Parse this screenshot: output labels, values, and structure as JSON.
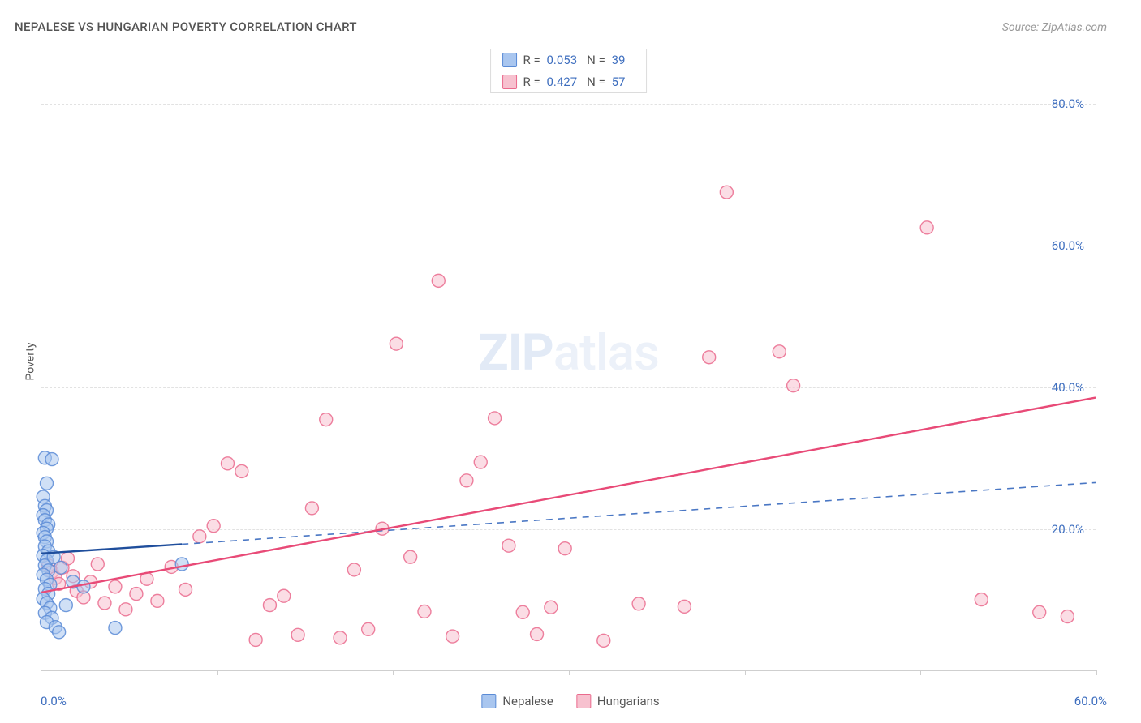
{
  "title": "NEPALESE VS HUNGARIAN POVERTY CORRELATION CHART",
  "source": "Source: ZipAtlas.com",
  "ylabel": "Poverty",
  "watermark_zip": "ZIP",
  "watermark_atlas": "atlas",
  "legend": [
    {
      "r_label": "R =",
      "r": "0.053",
      "n_label": "N =",
      "n": "39",
      "fill": "#a9c6ef",
      "stroke": "#5a8bd6"
    },
    {
      "r_label": "R =",
      "r": "0.427",
      "n_label": "N =",
      "n": "57",
      "fill": "#f7c1cf",
      "stroke": "#ea6a8d"
    }
  ],
  "bottom_legend": [
    {
      "label": "Nepalese",
      "fill": "#a9c6ef",
      "stroke": "#5a8bd6"
    },
    {
      "label": "Hungarians",
      "fill": "#f7c1cf",
      "stroke": "#ea6a8d"
    }
  ],
  "chart": {
    "type": "scatter",
    "xlim": [
      0,
      60
    ],
    "ylim": [
      0,
      88
    ],
    "x_tick_label_start": "0.0%",
    "x_tick_label_end": "60.0%",
    "x_minor_ticks": [
      10,
      20,
      30,
      40,
      50,
      60
    ],
    "y_ticks": [
      20,
      40,
      60,
      80
    ],
    "y_tick_labels": [
      "20.0%",
      "40.0%",
      "60.0%",
      "80.0%"
    ],
    "grid_color": "#e2e2e2",
    "tick_label_color": "#3f6fbf",
    "background_color": "#ffffff",
    "marker_radius": 8,
    "marker_opacity": 0.55,
    "line_width": 2.4,
    "series": {
      "nepalese": {
        "color_fill": "#a9c6ef",
        "color_stroke": "#5a8bd6",
        "trend": {
          "solid_from": [
            0,
            16.5
          ],
          "solid_to": [
            8,
            17.8
          ],
          "dash_to": [
            60,
            26.5
          ]
        },
        "points": [
          [
            0.2,
            30
          ],
          [
            0.6,
            29.8
          ],
          [
            0.3,
            26.4
          ],
          [
            0.1,
            24.5
          ],
          [
            0.2,
            23.2
          ],
          [
            0.3,
            22.6
          ],
          [
            0.1,
            21.9
          ],
          [
            0.2,
            21.2
          ],
          [
            0.4,
            20.6
          ],
          [
            0.3,
            20.0
          ],
          [
            0.1,
            19.4
          ],
          [
            0.2,
            18.8
          ],
          [
            0.3,
            18.2
          ],
          [
            0.2,
            17.5
          ],
          [
            0.4,
            16.8
          ],
          [
            0.1,
            16.2
          ],
          [
            0.3,
            15.5
          ],
          [
            0.2,
            14.8
          ],
          [
            0.4,
            14.1
          ],
          [
            0.1,
            13.5
          ],
          [
            0.3,
            12.8
          ],
          [
            0.5,
            12.1
          ],
          [
            0.2,
            11.5
          ],
          [
            0.4,
            10.8
          ],
          [
            0.1,
            10.1
          ],
          [
            0.3,
            9.5
          ],
          [
            0.5,
            8.8
          ],
          [
            0.2,
            8.1
          ],
          [
            0.6,
            7.4
          ],
          [
            0.3,
            6.8
          ],
          [
            0.8,
            6.1
          ],
          [
            1.0,
            5.4
          ],
          [
            1.4,
            9.2
          ],
          [
            1.8,
            12.5
          ],
          [
            2.4,
            11.8
          ],
          [
            4.2,
            6.0
          ],
          [
            0.7,
            16.0
          ],
          [
            1.1,
            14.5
          ],
          [
            8.0,
            15.0
          ]
        ]
      },
      "hungarians": {
        "color_fill": "#f7c1cf",
        "color_stroke": "#ea6a8d",
        "trend": {
          "solid_from": [
            0,
            11.0
          ],
          "solid_to": [
            60,
            38.5
          ]
        },
        "points": [
          [
            0.4,
            14.8
          ],
          [
            0.6,
            13.9
          ],
          [
            0.8,
            13.0
          ],
          [
            1.0,
            12.2
          ],
          [
            1.2,
            14.5
          ],
          [
            1.5,
            15.8
          ],
          [
            1.8,
            13.3
          ],
          [
            2.0,
            11.2
          ],
          [
            2.4,
            10.3
          ],
          [
            2.8,
            12.5
          ],
          [
            3.2,
            15.0
          ],
          [
            3.6,
            9.5
          ],
          [
            4.2,
            11.8
          ],
          [
            4.8,
            8.6
          ],
          [
            5.4,
            10.8
          ],
          [
            6.0,
            12.9
          ],
          [
            6.6,
            9.8
          ],
          [
            7.4,
            14.6
          ],
          [
            8.2,
            11.4
          ],
          [
            9.0,
            18.9
          ],
          [
            9.8,
            20.4
          ],
          [
            10.6,
            29.2
          ],
          [
            11.4,
            28.1
          ],
          [
            12.2,
            4.3
          ],
          [
            13.0,
            9.2
          ],
          [
            13.8,
            10.5
          ],
          [
            14.6,
            5.0
          ],
          [
            15.4,
            22.9
          ],
          [
            16.2,
            35.4
          ],
          [
            17.0,
            4.6
          ],
          [
            17.8,
            14.2
          ],
          [
            18.6,
            5.8
          ],
          [
            19.4,
            20.0
          ],
          [
            20.2,
            46.1
          ],
          [
            21.0,
            16.0
          ],
          [
            21.8,
            8.3
          ],
          [
            22.6,
            55.0
          ],
          [
            23.4,
            4.8
          ],
          [
            24.2,
            26.8
          ],
          [
            25.0,
            29.4
          ],
          [
            25.8,
            35.6
          ],
          [
            26.6,
            17.6
          ],
          [
            27.4,
            8.2
          ],
          [
            28.2,
            5.1
          ],
          [
            29.0,
            8.9
          ],
          [
            29.8,
            17.2
          ],
          [
            32.0,
            4.2
          ],
          [
            34.0,
            9.4
          ],
          [
            36.6,
            9.0
          ],
          [
            38.0,
            44.2
          ],
          [
            39.0,
            67.5
          ],
          [
            42.0,
            45.0
          ],
          [
            42.8,
            40.2
          ],
          [
            50.4,
            62.5
          ],
          [
            53.5,
            10.0
          ],
          [
            56.8,
            8.2
          ],
          [
            58.4,
            7.6
          ]
        ]
      }
    }
  }
}
